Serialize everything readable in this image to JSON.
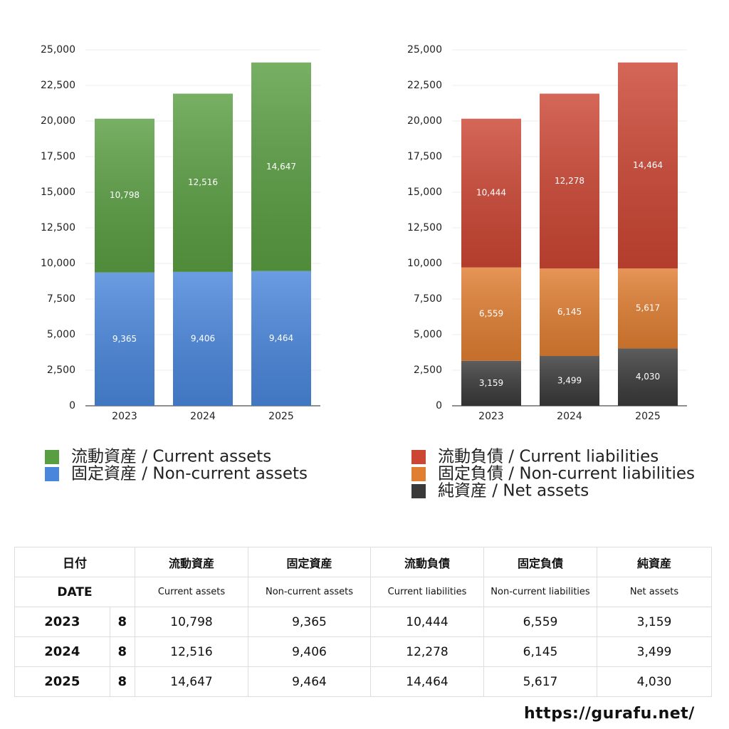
{
  "chart_data": [
    {
      "type": "bar",
      "stacked": true,
      "categories": [
        "2023",
        "2024",
        "2025"
      ],
      "series": [
        {
          "name": "固定資産 / Non-current assets",
          "color": "#4a87dc",
          "values": [
            9365,
            9406,
            9464
          ],
          "value_labels": [
            "9,365",
            "9,406",
            "9,464"
          ]
        },
        {
          "name": "流動資産 / Current assets",
          "color": "#5a9e42",
          "values": [
            10798,
            12516,
            14647
          ],
          "value_labels": [
            "10,798",
            "12,516",
            "14,647"
          ]
        }
      ],
      "ylim": [
        0,
        25000
      ],
      "yticks": [
        0,
        {
          "value": 2500,
          "label": "2,500"
        },
        {
          "value": 5000,
          "label": "5,000"
        },
        {
          "value": 7500,
          "label": "7,500"
        },
        {
          "value": 10000,
          "label": "10,000"
        },
        {
          "value": 12500,
          "label": "12,500"
        },
        {
          "value": 15000,
          "label": "15,000"
        },
        {
          "value": 17500,
          "label": "17,500"
        },
        {
          "value": 20000,
          "label": "20,000"
        },
        {
          "value": 22500,
          "label": "22,500"
        },
        {
          "value": 25000,
          "label": "25,000"
        }
      ],
      "grid": true,
      "legend": "bottom"
    },
    {
      "type": "bar",
      "stacked": true,
      "categories": [
        "2023",
        "2024",
        "2025"
      ],
      "series": [
        {
          "name": "純資産 / Net assets",
          "color": "#3a3a3a",
          "values": [
            3159,
            3499,
            4030
          ],
          "value_labels": [
            "3,159",
            "3,499",
            "4,030"
          ]
        },
        {
          "name": "固定負債 / Non-current liabilities",
          "color": "#e07e32",
          "values": [
            6559,
            6145,
            5617
          ],
          "value_labels": [
            "6,559",
            "6,145",
            "5,617"
          ]
        },
        {
          "name": "流動負債 / Current liabilities",
          "color": "#cc4634",
          "values": [
            10444,
            12278,
            14464
          ],
          "value_labels": [
            "10,444",
            "12,278",
            "14,464"
          ]
        }
      ],
      "ylim": [
        0,
        25000
      ],
      "yticks": [
        0,
        {
          "value": 2500,
          "label": "2,500"
        },
        {
          "value": 5000,
          "label": "5,000"
        },
        {
          "value": 7500,
          "label": "7,500"
        },
        {
          "value": 10000,
          "label": "10,000"
        },
        {
          "value": 12500,
          "label": "12,500"
        },
        {
          "value": 15000,
          "label": "15,000"
        },
        {
          "value": 17500,
          "label": "17,500"
        },
        {
          "value": 20000,
          "label": "20,000"
        },
        {
          "value": 22500,
          "label": "22,500"
        },
        {
          "value": 25000,
          "label": "25,000"
        }
      ],
      "grid": true,
      "legend": "bottom"
    }
  ],
  "table": {
    "header_ja": [
      "日付",
      "流動資産",
      "固定資産",
      "流動負債",
      "固定負債",
      "純資産"
    ],
    "header_en": [
      "DATE",
      "Current assets",
      "Non-current assets",
      "Current liabilities",
      "Non-current liabilities",
      "Net assets"
    ],
    "rows": [
      [
        "2023",
        "8",
        "10,798",
        "9,365",
        "10,444",
        "6,559",
        "3,159"
      ],
      [
        "2024",
        "8",
        "12,516",
        "9,406",
        "12,278",
        "6,145",
        "3,499"
      ],
      [
        "2025",
        "8",
        "14,647",
        "9,464",
        "14,464",
        "5,617",
        "4,030"
      ]
    ]
  },
  "footer": "https://gurafu.net/"
}
